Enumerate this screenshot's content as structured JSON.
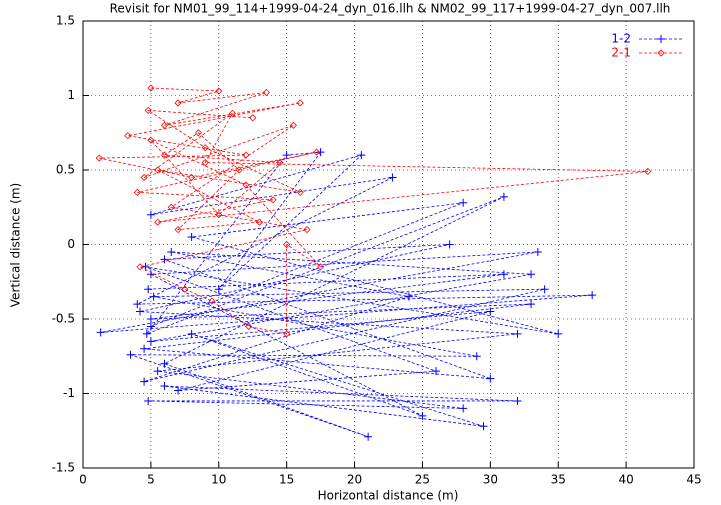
{
  "chart_data": {
    "type": "line",
    "title": "Revisit for NM01_99_114+1999-04-24_dyn_016.llh & NM02_99_117+1999-04-27_dyn_007.llh",
    "xlabel": "Horizontal distance (m)",
    "ylabel": "Vertical distance (m)",
    "xlim": [
      0,
      45
    ],
    "xticks": [
      0,
      5,
      10,
      15,
      20,
      25,
      30,
      35,
      40,
      45
    ],
    "ylim": [
      -1.5,
      1.5
    ],
    "yticks": [
      -1.5,
      -1,
      -0.5,
      0,
      0.5,
      1,
      1.5
    ],
    "grid": true,
    "legend": "top right",
    "series": [
      {
        "name": "1-2",
        "color": "#0000ff",
        "marker": "plus",
        "x": [
          4.8,
          31,
          5,
          33,
          4.5,
          30,
          6,
          27,
          4.2,
          32,
          5.5,
          28,
          4.8,
          32,
          6,
          29.5,
          8,
          25,
          5,
          33.5,
          1.3,
          37.5,
          4,
          22.8,
          5,
          20.5,
          10,
          17.5,
          15,
          4.7,
          31,
          6,
          21,
          3.5,
          29,
          5.2,
          34,
          4.5,
          24,
          6.5,
          33,
          5,
          30,
          7,
          26,
          4.6,
          35,
          8,
          28,
          5
        ],
        "values": [
          -0.3,
          -0.2,
          -0.5,
          -0.4,
          -0.7,
          -0.9,
          -0.1,
          0,
          -0.45,
          -0.6,
          -0.85,
          -1.1,
          -1.05,
          -1.05,
          -0.95,
          -1.22,
          -0.6,
          -1.15,
          -0.2,
          -0.05,
          -0.59,
          -0.34,
          -0.4,
          0.45,
          0.2,
          0.6,
          -0.3,
          0.62,
          0.6,
          -0.6,
          0.32,
          -0.8,
          -1.29,
          -0.74,
          -0.75,
          -0.35,
          -0.3,
          -0.92,
          -0.35,
          -0.05,
          -0.2,
          -0.65,
          -0.45,
          -0.98,
          -0.85,
          -0.15,
          -0.6,
          0.05,
          0.28,
          -0.55
        ]
      },
      {
        "name": "2-1",
        "color": "#ff0000",
        "marker": "diamond",
        "x": [
          5,
          10,
          7,
          13.5,
          6,
          16,
          3.3,
          12,
          1.2,
          8,
          17.2,
          4,
          14,
          5.5,
          41.6,
          9,
          11,
          4.5,
          15.5,
          6.5,
          16.5,
          4.2,
          7.5,
          9.5,
          12.2,
          15,
          15,
          17.5,
          12,
          5,
          10,
          14.5,
          6,
          8.5,
          11.5,
          7,
          13,
          5.5,
          16,
          9,
          4.8,
          12.5
        ],
        "values": [
          1.05,
          1.03,
          0.95,
          1.02,
          0.8,
          0.95,
          0.73,
          0.6,
          0.58,
          0.45,
          0.62,
          0.35,
          0.3,
          0.15,
          0.49,
          0.55,
          0.88,
          0.45,
          0.8,
          0.25,
          0.1,
          -0.15,
          -0.3,
          -0.38,
          -0.55,
          -0.6,
          0,
          -0.15,
          0.4,
          0.7,
          0.2,
          0.55,
          0.6,
          0.75,
          0.5,
          0.1,
          0.15,
          0.5,
          0.35,
          0.65,
          0.9,
          0.85
        ]
      }
    ]
  }
}
